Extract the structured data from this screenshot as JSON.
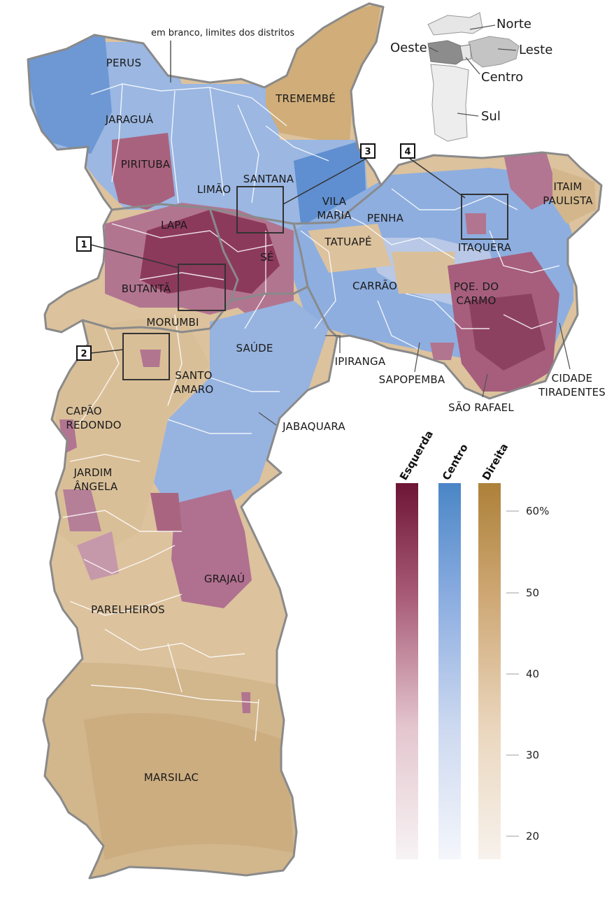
{
  "annotation": "em branco, limites dos distritos",
  "districts": [
    "PERUS",
    "JARAGUÁ",
    "PIRITUBA",
    "TREMEMBÉ",
    "SANTANA",
    "LIMÃO",
    "VILA",
    "MARIA",
    "ITAIM",
    "PAULISTA",
    "PENHA",
    "LAPA",
    "TATUAPÉ",
    "ITAQUERA",
    "SÉ",
    "BUTANTÃ",
    "CARRÃO",
    "PQE. DO",
    "CARMO",
    "MORUMBI",
    "SAÚDE",
    "IPIRANGA",
    "SAPOPEMBA",
    "CIDADE",
    "TIRADENTES",
    "SANTO",
    "AMARO",
    "SÃO RAFAEL",
    "CAPÃO",
    "REDONDO",
    "JABAQUARA",
    "JARDIM",
    "ÂNGELA",
    "GRAJAÚ",
    "PARELHEIROS",
    "MARSILAC"
  ],
  "highlight_boxes": [
    "1",
    "2",
    "3",
    "4"
  ],
  "inset_map": {
    "regions": [
      "Norte",
      "Oeste",
      "Leste",
      "Centro",
      "Sul"
    ]
  },
  "legend": {
    "categories": [
      {
        "name": "Esquerda",
        "color_top": "#6e1536"
      },
      {
        "name": "Centro",
        "color_top": "#4a86c6"
      },
      {
        "name": "Direita",
        "color_top": "#ad8139"
      }
    ],
    "ticks": [
      "60%",
      "50",
      "40",
      "30",
      "20"
    ]
  },
  "colors": {
    "esquerda": "#9a4060",
    "centro": "#8fb0df",
    "direita": "#d8bd92",
    "district_border": "#ffffff",
    "region_border": "#8a8a8a"
  }
}
